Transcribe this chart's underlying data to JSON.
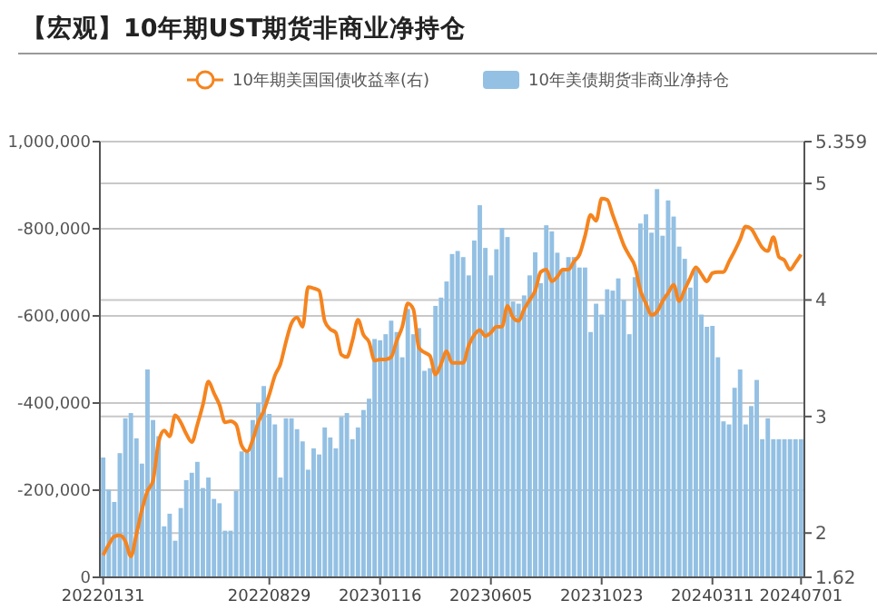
{
  "chart_data": {
    "type": "bar",
    "title": "【宏观】10年期UST期货非商业净持仓",
    "legend": "top",
    "grid": true,
    "categories": [
      "20220131",
      null,
      null,
      null,
      null,
      null,
      null,
      null,
      null,
      null,
      null,
      null,
      null,
      null,
      null,
      null,
      null,
      null,
      null,
      null,
      null,
      null,
      null,
      null,
      null,
      null,
      null,
      null,
      null,
      null,
      "20220829",
      null,
      null,
      null,
      null,
      null,
      null,
      null,
      null,
      null,
      null,
      null,
      null,
      null,
      null,
      null,
      null,
      null,
      null,
      null,
      "20230116",
      null,
      null,
      null,
      null,
      null,
      null,
      null,
      null,
      null,
      null,
      null,
      null,
      null,
      null,
      null,
      null,
      null,
      null,
      null,
      "20230605",
      null,
      null,
      null,
      null,
      null,
      null,
      null,
      null,
      null,
      null,
      null,
      null,
      null,
      null,
      null,
      null,
      null,
      null,
      null,
      "20231023",
      null,
      null,
      null,
      null,
      null,
      null,
      null,
      null,
      null,
      null,
      null,
      null,
      null,
      null,
      null,
      null,
      null,
      null,
      null,
      "20240311",
      null,
      null,
      null,
      null,
      null,
      null,
      null,
      null,
      null,
      null,
      null,
      null,
      null,
      null,
      null,
      "20240701"
    ],
    "ylim": [
      0,
      -1000000
    ],
    "yticks": [
      {
        "value": 0,
        "label": "0"
      },
      {
        "value": -200000,
        "label": "-200,000"
      },
      {
        "value": -400000,
        "label": "-400,000"
      },
      {
        "value": -600000,
        "label": "-600,000"
      },
      {
        "value": -800000,
        "label": "-800,000"
      },
      {
        "value": -1000000,
        "label": "1,000,000"
      }
    ],
    "y2lim": [
      1.62,
      5.359
    ],
    "y2ticks": [
      1.62,
      2,
      3,
      4,
      5,
      5.359
    ],
    "series": [
      {
        "name": "10年美债期货非商业净持仓",
        "color": "#93c0e3",
        "values": [
          -275000,
          -201000,
          -173000,
          -285000,
          -365000,
          -377000,
          -319000,
          -261000,
          -477000,
          -361000,
          -324000,
          -117000,
          -146000,
          -84000,
          -159000,
          -223000,
          -240000,
          -265000,
          -205000,
          -229000,
          -180000,
          -170000,
          -107000,
          -107000,
          -198000,
          -289000,
          -286000,
          -361000,
          -400000,
          -439000,
          -375000,
          -351000,
          -229000,
          -365000,
          -365000,
          -340000,
          -312000,
          -247000,
          -296000,
          -282000,
          -344000,
          -321000,
          -296000,
          -368000,
          -377000,
          -317000,
          -344000,
          -384000,
          -410000,
          -547000,
          -544000,
          -558000,
          -589000,
          -563000,
          -505000,
          -616000,
          -558000,
          -572000,
          -474000,
          -480000,
          -623000,
          -642000,
          -679000,
          -742000,
          -749000,
          -735000,
          -693000,
          -773000,
          -854000,
          -756000,
          -693000,
          -753000,
          -802000,
          -781000,
          -633000,
          -628000,
          -647000,
          -693000,
          -746000,
          -675000,
          -808000,
          -794000,
          -745000,
          -703000,
          -735000,
          -735000,
          -711000,
          -711000,
          -563000,
          -628000,
          -603000,
          -661000,
          -658000,
          -686000,
          -637000,
          -558000,
          -689000,
          -812000,
          -833000,
          -791000,
          -891000,
          -784000,
          -865000,
          -828000,
          -759000,
          -731000,
          -665000,
          -707000,
          -603000,
          -575000,
          -577000,
          -505000,
          -358000,
          -351000,
          -435000,
          -477000,
          -351000,
          -393000,
          -453000,
          -317000,
          -365000,
          -317000,
          -317000,
          -317000,
          -317000,
          -317000,
          -317000
        ]
      },
      {
        "name": "10年期美国国债收益率(右)",
        "type": "line",
        "axis": "y2",
        "color": "#f5841f",
        "values": [
          1.81,
          1.9,
          1.97,
          1.98,
          1.93,
          1.8,
          1.99,
          2.2,
          2.36,
          2.45,
          2.78,
          2.88,
          2.83,
          3.01,
          2.95,
          2.85,
          2.78,
          2.93,
          3.1,
          3.3,
          3.2,
          3.1,
          2.95,
          2.96,
          2.93,
          2.75,
          2.7,
          2.8,
          2.95,
          3.05,
          3.19,
          3.35,
          3.45,
          3.64,
          3.8,
          3.85,
          3.77,
          4.11,
          4.1,
          4.08,
          3.82,
          3.75,
          3.72,
          3.53,
          3.51,
          3.65,
          3.83,
          3.7,
          3.64,
          3.48,
          3.49,
          3.49,
          3.51,
          3.65,
          3.77,
          3.97,
          3.92,
          3.59,
          3.55,
          3.52,
          3.36,
          3.45,
          3.56,
          3.46,
          3.46,
          3.46,
          3.61,
          3.7,
          3.74,
          3.69,
          3.72,
          3.77,
          3.77,
          3.95,
          3.85,
          3.82,
          3.92,
          4.0,
          4.08,
          4.24,
          4.26,
          4.16,
          4.2,
          4.26,
          4.26,
          4.33,
          4.39,
          4.55,
          4.73,
          4.68,
          4.87,
          4.86,
          4.73,
          4.6,
          4.47,
          4.38,
          4.29,
          4.08,
          3.97,
          3.87,
          3.9,
          3.99,
          4.06,
          4.13,
          3.99,
          4.09,
          4.19,
          4.28,
          4.22,
          4.16,
          4.23,
          4.24,
          4.24,
          4.33,
          4.42,
          4.52,
          4.63,
          4.61,
          4.53,
          4.45,
          4.42,
          4.54,
          4.37,
          4.34,
          4.26,
          4.32,
          4.39
        ]
      }
    ]
  }
}
